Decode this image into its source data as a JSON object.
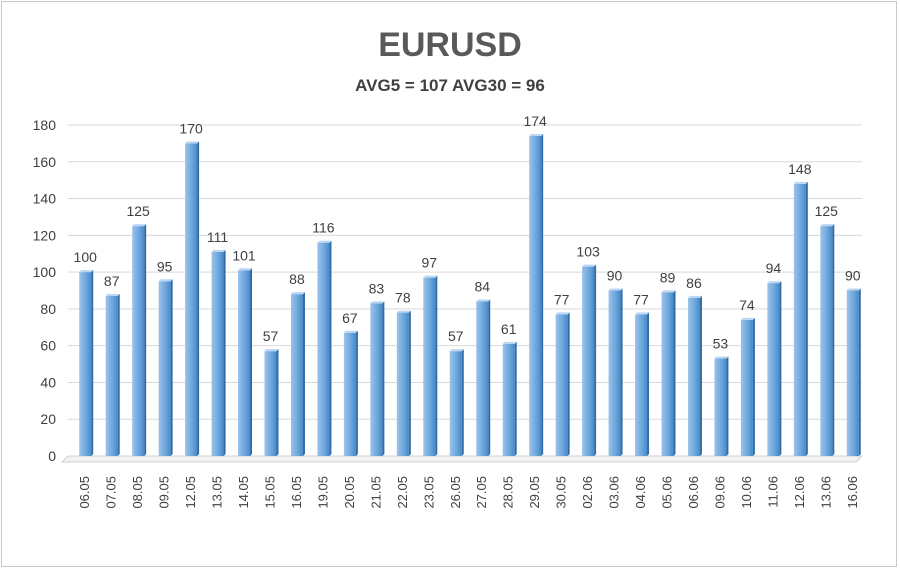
{
  "chart_data": {
    "type": "bar",
    "title": "EURUSD",
    "subtitle": "AVG5 = 107 AVG30 = 96",
    "xlabel": "",
    "ylabel": "",
    "ylim": [
      0,
      180
    ],
    "yticks": [
      0,
      20,
      40,
      60,
      80,
      100,
      120,
      140,
      160,
      180
    ],
    "grid": true,
    "categories": [
      "06.05",
      "07.05",
      "08.05",
      "09.05",
      "12.05",
      "13.05",
      "14.05",
      "15.05",
      "16.05",
      "19.05",
      "20.05",
      "21.05",
      "22.05",
      "23.05",
      "26.05",
      "27.05",
      "28.05",
      "29.05",
      "30.05",
      "02.06",
      "03.06",
      "04.06",
      "05.06",
      "06.06",
      "09.06",
      "10.06",
      "11.06",
      "12.06",
      "13.06",
      "16.06"
    ],
    "values": [
      100,
      87,
      125,
      95,
      170,
      111,
      101,
      57,
      88,
      116,
      67,
      83,
      78,
      97,
      57,
      84,
      61,
      174,
      77,
      103,
      90,
      77,
      89,
      86,
      53,
      74,
      94,
      148,
      125,
      90
    ],
    "bar_color": "#5b9bd5"
  }
}
